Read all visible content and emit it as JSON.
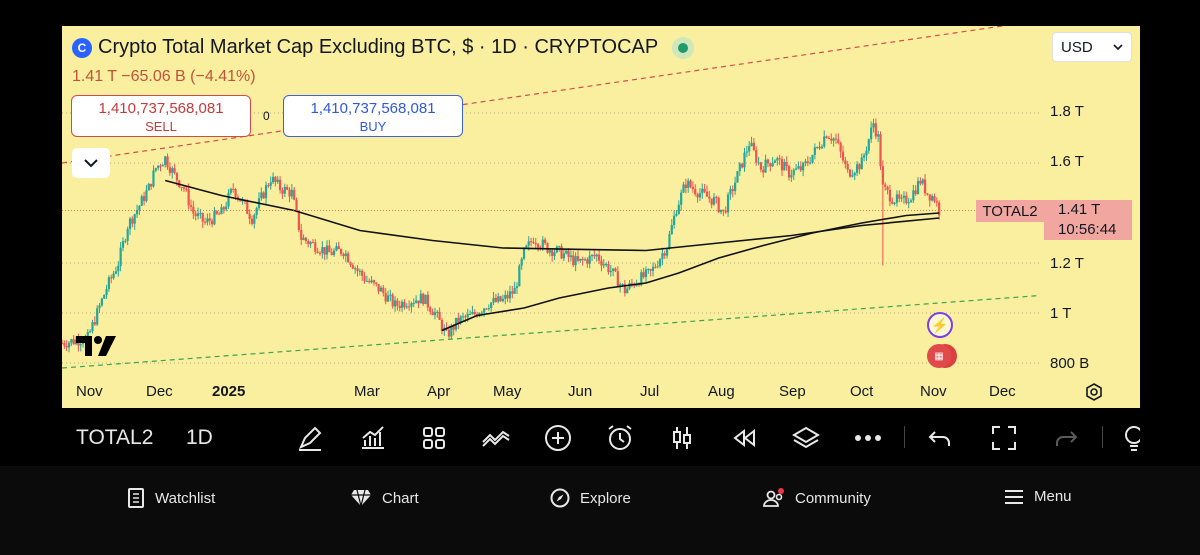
{
  "header": {
    "title": "Crypto Total Market Cap Excluding BTC, $ · 1D · CRYPTOCAP",
    "ohlc_line": "1.41 T −65.06 B (−4.41%)",
    "sell_value": "1,410,737,568,081",
    "sell_label": "SELL",
    "buy_value": "1,410,737,568,081",
    "buy_label": "BUY",
    "spread": "0",
    "currency": "USD",
    "logo_glyph": "C"
  },
  "price_axis": {
    "labels": [
      "1.8 T",
      "1.6 T",
      "1.2 T",
      "1 T",
      "800 B"
    ],
    "symbol_tag": "TOTAL2",
    "last_value": "1.41 T",
    "countdown": "10:56:44"
  },
  "time_axis": {
    "labels": [
      "Nov",
      "Dec",
      "2025",
      "Mar",
      "Apr",
      "May",
      "Jun",
      "Jul",
      "Aug",
      "Sep",
      "Oct",
      "Nov",
      "Dec"
    ]
  },
  "toolbar": {
    "symbol": "TOTAL2",
    "interval": "1D"
  },
  "bottom_nav": {
    "items": [
      "Watchlist",
      "Chart",
      "Explore",
      "Community",
      "Menu"
    ]
  },
  "colors": {
    "panel_bg": "#f9ef9f",
    "up": "#26a69a",
    "down": "#ef5350",
    "ma": "#111111",
    "upper_channel": "#d94c4c",
    "lower_channel": "#3fa34d"
  },
  "chart_data": {
    "type": "candlestick",
    "title": "Crypto Total Market Cap Excluding BTC, $ · 1D · CRYPTOCAP",
    "y_unit": "T",
    "y_ticks": [
      0.8,
      1.0,
      1.2,
      1.6,
      1.8
    ],
    "last_close": 1.41,
    "change": "−65.06 B",
    "change_pct": "−4.41%",
    "close_path": [
      {
        "x": "2024-10-25",
        "v": 0.88
      },
      {
        "x": "2024-11-05",
        "v": 0.9
      },
      {
        "x": "2024-11-09",
        "v": 1.0
      },
      {
        "x": "2024-11-13",
        "v": 1.1
      },
      {
        "x": "2024-11-18",
        "v": 1.2
      },
      {
        "x": "2024-11-22",
        "v": 1.35
      },
      {
        "x": "2024-11-27",
        "v": 1.43
      },
      {
        "x": "2024-12-01",
        "v": 1.5
      },
      {
        "x": "2024-12-04",
        "v": 1.58
      },
      {
        "x": "2024-12-08",
        "v": 1.62
      },
      {
        "x": "2024-12-12",
        "v": 1.55
      },
      {
        "x": "2024-12-16",
        "v": 1.5
      },
      {
        "x": "2024-12-20",
        "v": 1.4
      },
      {
        "x": "2024-12-25",
        "v": 1.36
      },
      {
        "x": "2025-01-01",
        "v": 1.4
      },
      {
        "x": "2025-01-06",
        "v": 1.5
      },
      {
        "x": "2025-01-10",
        "v": 1.44
      },
      {
        "x": "2025-01-14",
        "v": 1.38
      },
      {
        "x": "2025-01-18",
        "v": 1.46
      },
      {
        "x": "2025-01-22",
        "v": 1.54
      },
      {
        "x": "2025-01-26",
        "v": 1.5
      },
      {
        "x": "2025-01-31",
        "v": 1.48
      },
      {
        "x": "2025-02-04",
        "v": 1.3
      },
      {
        "x": "2025-02-10",
        "v": 1.27
      },
      {
        "x": "2025-02-16",
        "v": 1.24
      },
      {
        "x": "2025-02-22",
        "v": 1.25
      },
      {
        "x": "2025-02-28",
        "v": 1.17
      },
      {
        "x": "2025-03-04",
        "v": 1.13
      },
      {
        "x": "2025-03-10",
        "v": 1.09
      },
      {
        "x": "2025-03-16",
        "v": 1.03
      },
      {
        "x": "2025-03-22",
        "v": 1.05
      },
      {
        "x": "2025-03-28",
        "v": 1.06
      },
      {
        "x": "2025-04-02",
        "v": 1.0
      },
      {
        "x": "2025-04-07",
        "v": 0.91
      },
      {
        "x": "2025-04-12",
        "v": 0.97
      },
      {
        "x": "2025-04-18",
        "v": 0.99
      },
      {
        "x": "2025-04-25",
        "v": 1.04
      },
      {
        "x": "2025-05-01",
        "v": 1.05
      },
      {
        "x": "2025-05-06",
        "v": 1.09
      },
      {
        "x": "2025-05-10",
        "v": 1.24
      },
      {
        "x": "2025-05-14",
        "v": 1.3
      },
      {
        "x": "2025-05-20",
        "v": 1.26
      },
      {
        "x": "2025-05-26",
        "v": 1.24
      },
      {
        "x": "2025-06-02",
        "v": 1.2
      },
      {
        "x": "2025-06-10",
        "v": 1.23
      },
      {
        "x": "2025-06-16",
        "v": 1.17
      },
      {
        "x": "2025-06-22",
        "v": 1.09
      },
      {
        "x": "2025-06-27",
        "v": 1.13
      },
      {
        "x": "2025-07-03",
        "v": 1.16
      },
      {
        "x": "2025-07-10",
        "v": 1.27
      },
      {
        "x": "2025-07-14",
        "v": 1.42
      },
      {
        "x": "2025-07-18",
        "v": 1.52
      },
      {
        "x": "2025-07-24",
        "v": 1.48
      },
      {
        "x": "2025-07-30",
        "v": 1.45
      },
      {
        "x": "2025-08-03",
        "v": 1.4
      },
      {
        "x": "2025-08-09",
        "v": 1.55
      },
      {
        "x": "2025-08-14",
        "v": 1.68
      },
      {
        "x": "2025-08-19",
        "v": 1.58
      },
      {
        "x": "2025-08-25",
        "v": 1.62
      },
      {
        "x": "2025-08-31",
        "v": 1.56
      },
      {
        "x": "2025-09-06",
        "v": 1.58
      },
      {
        "x": "2025-09-12",
        "v": 1.66
      },
      {
        "x": "2025-09-16",
        "v": 1.72
      },
      {
        "x": "2025-09-20",
        "v": 1.69
      },
      {
        "x": "2025-09-25",
        "v": 1.56
      },
      {
        "x": "2025-10-01",
        "v": 1.6
      },
      {
        "x": "2025-10-06",
        "v": 1.76
      },
      {
        "x": "2025-10-08",
        "v": 1.7
      },
      {
        "x": "2025-10-10",
        "v": 1.5
      },
      {
        "x": "2025-10-14",
        "v": 1.46
      },
      {
        "x": "2025-10-18",
        "v": 1.44
      },
      {
        "x": "2025-10-22",
        "v": 1.47
      },
      {
        "x": "2025-10-26",
        "v": 1.53
      },
      {
        "x": "2025-10-29",
        "v": 1.48
      },
      {
        "x": "2025-11-01",
        "v": 1.46
      },
      {
        "x": "2025-11-03",
        "v": 1.41
      }
    ],
    "ma_long": [
      {
        "x": "2024-12-08",
        "v": 1.53
      },
      {
        "x": "2025-01-01",
        "v": 1.47
      },
      {
        "x": "2025-02-01",
        "v": 1.41
      },
      {
        "x": "2025-03-01",
        "v": 1.33
      },
      {
        "x": "2025-04-01",
        "v": 1.29
      },
      {
        "x": "2025-05-01",
        "v": 1.26
      },
      {
        "x": "2025-06-01",
        "v": 1.255
      },
      {
        "x": "2025-07-01",
        "v": 1.25
      },
      {
        "x": "2025-08-01",
        "v": 1.28
      },
      {
        "x": "2025-09-01",
        "v": 1.31
      },
      {
        "x": "2025-10-01",
        "v": 1.35
      },
      {
        "x": "2025-11-03",
        "v": 1.38
      }
    ],
    "ma_short": [
      {
        "x": "2025-04-05",
        "v": 0.93
      },
      {
        "x": "2025-04-20",
        "v": 0.99
      },
      {
        "x": "2025-05-10",
        "v": 1.02
      },
      {
        "x": "2025-05-25",
        "v": 1.06
      },
      {
        "x": "2025-06-15",
        "v": 1.1
      },
      {
        "x": "2025-07-01",
        "v": 1.12
      },
      {
        "x": "2025-07-15",
        "v": 1.16
      },
      {
        "x": "2025-08-01",
        "v": 1.22
      },
      {
        "x": "2025-08-20",
        "v": 1.27
      },
      {
        "x": "2025-09-10",
        "v": 1.32
      },
      {
        "x": "2025-10-01",
        "v": 1.36
      },
      {
        "x": "2025-10-20",
        "v": 1.39
      },
      {
        "x": "2025-11-03",
        "v": 1.4
      }
    ],
    "upper_channel": [
      {
        "x": "2024-10-25",
        "v": 1.6
      },
      {
        "x": "2025-12-16",
        "v": 2.17
      }
    ],
    "lower_channel": [
      {
        "x": "2024-10-25",
        "v": 0.78
      },
      {
        "x": "2025-12-16",
        "v": 1.07
      }
    ],
    "oct10_wick_low": 1.19,
    "x_range": [
      "2024-10-25",
      "2025-12-16"
    ]
  }
}
